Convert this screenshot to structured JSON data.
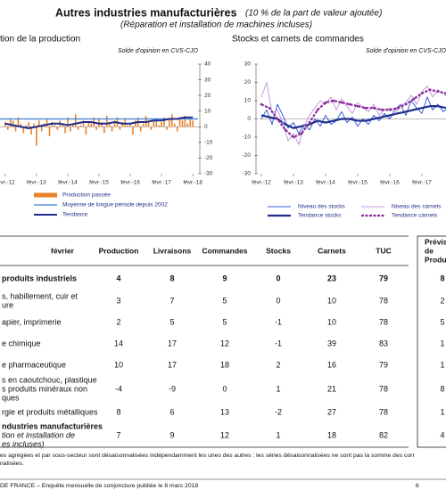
{
  "header": {
    "title": "Autres industries manufacturières",
    "title_note": "(10 % de la part de valeur ajoutée)",
    "subtitle": "(Réparation et installation de machines incluses)"
  },
  "chart_data": [
    {
      "type": "bar",
      "title": "tion de la production",
      "note": "Solde d'opinion en CVS-CJO",
      "xlim": [
        -2,
        74
      ],
      "xticks": [
        {
          "value": 0,
          "label": "févr.-12"
        },
        {
          "value": 12,
          "label": "févr.-13"
        },
        {
          "value": 24,
          "label": "févr.-14"
        },
        {
          "value": 36,
          "label": "févr.-15"
        },
        {
          "value": 48,
          "label": "févr.-16"
        },
        {
          "value": 60,
          "label": "févr.-17"
        },
        {
          "value": 72,
          "label": "févr.-18"
        }
      ],
      "ylim": [
        -30,
        40
      ],
      "yticks": [
        40,
        30,
        20,
        10,
        0,
        -10,
        -20,
        -30
      ],
      "y_axis_side": "right",
      "series": [
        {
          "name": "Production passée",
          "type": "bar",
          "color": "#e8822a",
          "x": [
            0,
            1,
            2,
            3,
            4,
            5,
            6,
            7,
            8,
            9,
            10,
            11,
            12,
            13,
            14,
            15,
            16,
            17,
            18,
            19,
            20,
            21,
            22,
            23,
            24,
            25,
            26,
            27,
            28,
            29,
            30,
            31,
            32,
            33,
            34,
            35,
            36,
            37,
            38,
            39,
            40,
            41,
            42,
            43,
            44,
            45,
            46,
            47,
            48,
            49,
            50,
            51,
            52,
            53,
            54,
            55,
            56,
            57,
            58,
            59,
            60,
            61,
            62,
            63,
            64,
            65,
            66,
            67,
            68,
            69,
            70,
            71,
            72
          ],
          "values": [
            3,
            -2,
            5,
            4,
            -3,
            6,
            2,
            -4,
            1,
            3,
            -5,
            2,
            -12,
            4,
            -3,
            2,
            5,
            -6,
            3,
            1,
            -2,
            4,
            2,
            -4,
            6,
            -3,
            2,
            8,
            -2,
            1,
            4,
            -5,
            3,
            2,
            6,
            -2,
            5,
            3,
            -4,
            7,
            2,
            -3,
            4,
            6,
            -2,
            3,
            5,
            1,
            2,
            -5,
            4,
            6,
            -3,
            2,
            7,
            3,
            -2,
            4,
            5,
            1,
            3,
            6,
            -2,
            5,
            8,
            2,
            -3,
            6,
            4,
            7,
            2,
            5,
            4
          ]
        },
        {
          "name": "Moyenne de longue période depuis 2002",
          "type": "line",
          "color": "#3a7fd5",
          "x": [
            -2,
            74
          ],
          "values": [
            5,
            5
          ]
        },
        {
          "name": "Tendance",
          "type": "line",
          "color": "#1f2d8a",
          "width": 2,
          "x": [
            0,
            3,
            6,
            9,
            12,
            15,
            18,
            21,
            24,
            27,
            30,
            33,
            36,
            39,
            42,
            45,
            48,
            51,
            54,
            57,
            60,
            63,
            66,
            69,
            72
          ],
          "values": [
            2,
            1,
            0,
            -1,
            0,
            1,
            2,
            2,
            1,
            2,
            3,
            3,
            2,
            2,
            3,
            2,
            2,
            3,
            3,
            4,
            4,
            5,
            5,
            6,
            6
          ]
        }
      ]
    },
    {
      "type": "line",
      "title": "Stocks et carnets de commandes",
      "note": "Solde d'opinion en CVS-CJO",
      "xlim": [
        -1,
        71
      ],
      "xticks": [
        {
          "value": 0,
          "label": "févr.-12"
        },
        {
          "value": 12,
          "label": "févr.-13"
        },
        {
          "value": 24,
          "label": "févr.-14"
        },
        {
          "value": 36,
          "label": "févr.-15"
        },
        {
          "value": 48,
          "label": "févr.-16"
        },
        {
          "value": 60,
          "label": "févr.-17"
        }
      ],
      "ylim": [
        -30,
        30
      ],
      "yticks": [
        30,
        20,
        10,
        0,
        -10,
        -20,
        -30
      ],
      "y_axis_side": "left",
      "series": [
        {
          "name": "Niveau des stocks",
          "type": "line",
          "color": "#3a5fd5",
          "width": 1,
          "x": [
            0,
            2,
            4,
            6,
            8,
            10,
            12,
            14,
            16,
            18,
            20,
            22,
            24,
            26,
            28,
            30,
            32,
            34,
            36,
            38,
            40,
            42,
            44,
            46,
            48,
            50,
            52,
            54,
            56,
            58,
            60,
            62,
            64,
            66,
            68,
            70
          ],
          "values": [
            0,
            5,
            -3,
            8,
            2,
            -5,
            -2,
            -8,
            -3,
            -6,
            0,
            -4,
            2,
            -3,
            -1,
            4,
            -2,
            1,
            -4,
            0,
            -3,
            2,
            -1,
            3,
            0,
            5,
            8,
            2,
            10,
            6,
            3,
            12,
            5,
            8,
            4,
            6
          ]
        },
        {
          "name": "Tendance stocks",
          "type": "line",
          "color": "#1f2d8a",
          "width": 2.2,
          "x": [
            0,
            3,
            6,
            9,
            12,
            15,
            18,
            21,
            24,
            27,
            30,
            33,
            36,
            39,
            42,
            45,
            48,
            51,
            54,
            57,
            60,
            63,
            66,
            69
          ],
          "values": [
            2,
            1,
            0,
            -3,
            -5,
            -4,
            -3,
            -1,
            -2,
            -1,
            0,
            0,
            -1,
            -1,
            0,
            1,
            2,
            3,
            4,
            5,
            6,
            7,
            7,
            6
          ]
        },
        {
          "name": "Niveau des carnets",
          "type": "line",
          "color": "#c39be0",
          "width": 1,
          "x": [
            0,
            2,
            4,
            6,
            8,
            10,
            12,
            14,
            16,
            18,
            20,
            22,
            24,
            26,
            28,
            30,
            32,
            34,
            36,
            38,
            40,
            42,
            44,
            46,
            48,
            50,
            52,
            54,
            56,
            58,
            60,
            62,
            64,
            66,
            68,
            70
          ],
          "values": [
            12,
            20,
            3,
            5,
            -2,
            -12,
            -8,
            -14,
            -4,
            2,
            6,
            10,
            8,
            12,
            5,
            11,
            7,
            3,
            9,
            6,
            4,
            8,
            2,
            5,
            6,
            3,
            7,
            9,
            13,
            8,
            15,
            18,
            12,
            16,
            14,
            11
          ]
        },
        {
          "name": "Tendance carnets",
          "type": "line",
          "color": "#8a2a9a",
          "width": 2.2,
          "style": "dashed",
          "x": [
            0,
            3,
            6,
            9,
            12,
            15,
            18,
            21,
            24,
            27,
            30,
            33,
            36,
            39,
            42,
            45,
            48,
            51,
            54,
            57,
            60,
            63,
            66,
            69
          ],
          "values": [
            8,
            6,
            0,
            -6,
            -10,
            -8,
            -2,
            5,
            9,
            10,
            9,
            8,
            7,
            6,
            6,
            5,
            5,
            6,
            8,
            11,
            14,
            16,
            15,
            14
          ]
        }
      ]
    }
  ],
  "table": {
    "columns": [
      "février",
      "Production",
      "Livraisons",
      "Commandes",
      "Stocks",
      "Carnets",
      "TUC"
    ],
    "forecast_header": [
      "Prévis",
      "de",
      "Produ"
    ],
    "rows": [
      {
        "label": [
          "produits industriels"
        ],
        "values": [
          4,
          8,
          9,
          0,
          23,
          79
        ],
        "forecast": 8
      },
      {
        "label": [
          "s, habillement, cuir et",
          "ure"
        ],
        "values": [
          3,
          7,
          5,
          0,
          10,
          78
        ],
        "forecast": 2
      },
      {
        "label": [
          "apier, imprimerie"
        ],
        "values": [
          2,
          5,
          5,
          -1,
          10,
          78
        ],
        "forecast": 5
      },
      {
        "label": [
          "e chimique"
        ],
        "values": [
          14,
          17,
          12,
          -1,
          39,
          83
        ],
        "forecast": 1
      },
      {
        "label": [
          "e pharmaceutique"
        ],
        "values": [
          10,
          17,
          18,
          2,
          16,
          79
        ],
        "forecast": 1
      },
      {
        "label": [
          "s en caoutchouc, plastique",
          "s produits minéraux non",
          "ques"
        ],
        "values": [
          -4,
          -9,
          0,
          1,
          21,
          78
        ],
        "forecast": 8
      },
      {
        "label": [
          "rgie et produits métalliques"
        ],
        "values": [
          8,
          6,
          13,
          -2,
          27,
          78
        ],
        "forecast": 1
      },
      {
        "label": [
          "ndustries manufacturières",
          "tion et installation de",
          "es incluses)"
        ],
        "values": [
          7,
          9,
          12,
          1,
          18,
          82
        ],
        "forecast": 4
      }
    ]
  },
  "footnote": [
    "es agrégées et par sous-secteur sont désaisonnalisées indépendamment les unes des autres : les séries désaisonnalisées ne sont pas la somme des corr",
    "nalisées."
  ],
  "footer": {
    "source": "DE FRANCE –   Enquête mensuelle de conjoncture publiée le 8 mars 2018",
    "page": "6"
  }
}
